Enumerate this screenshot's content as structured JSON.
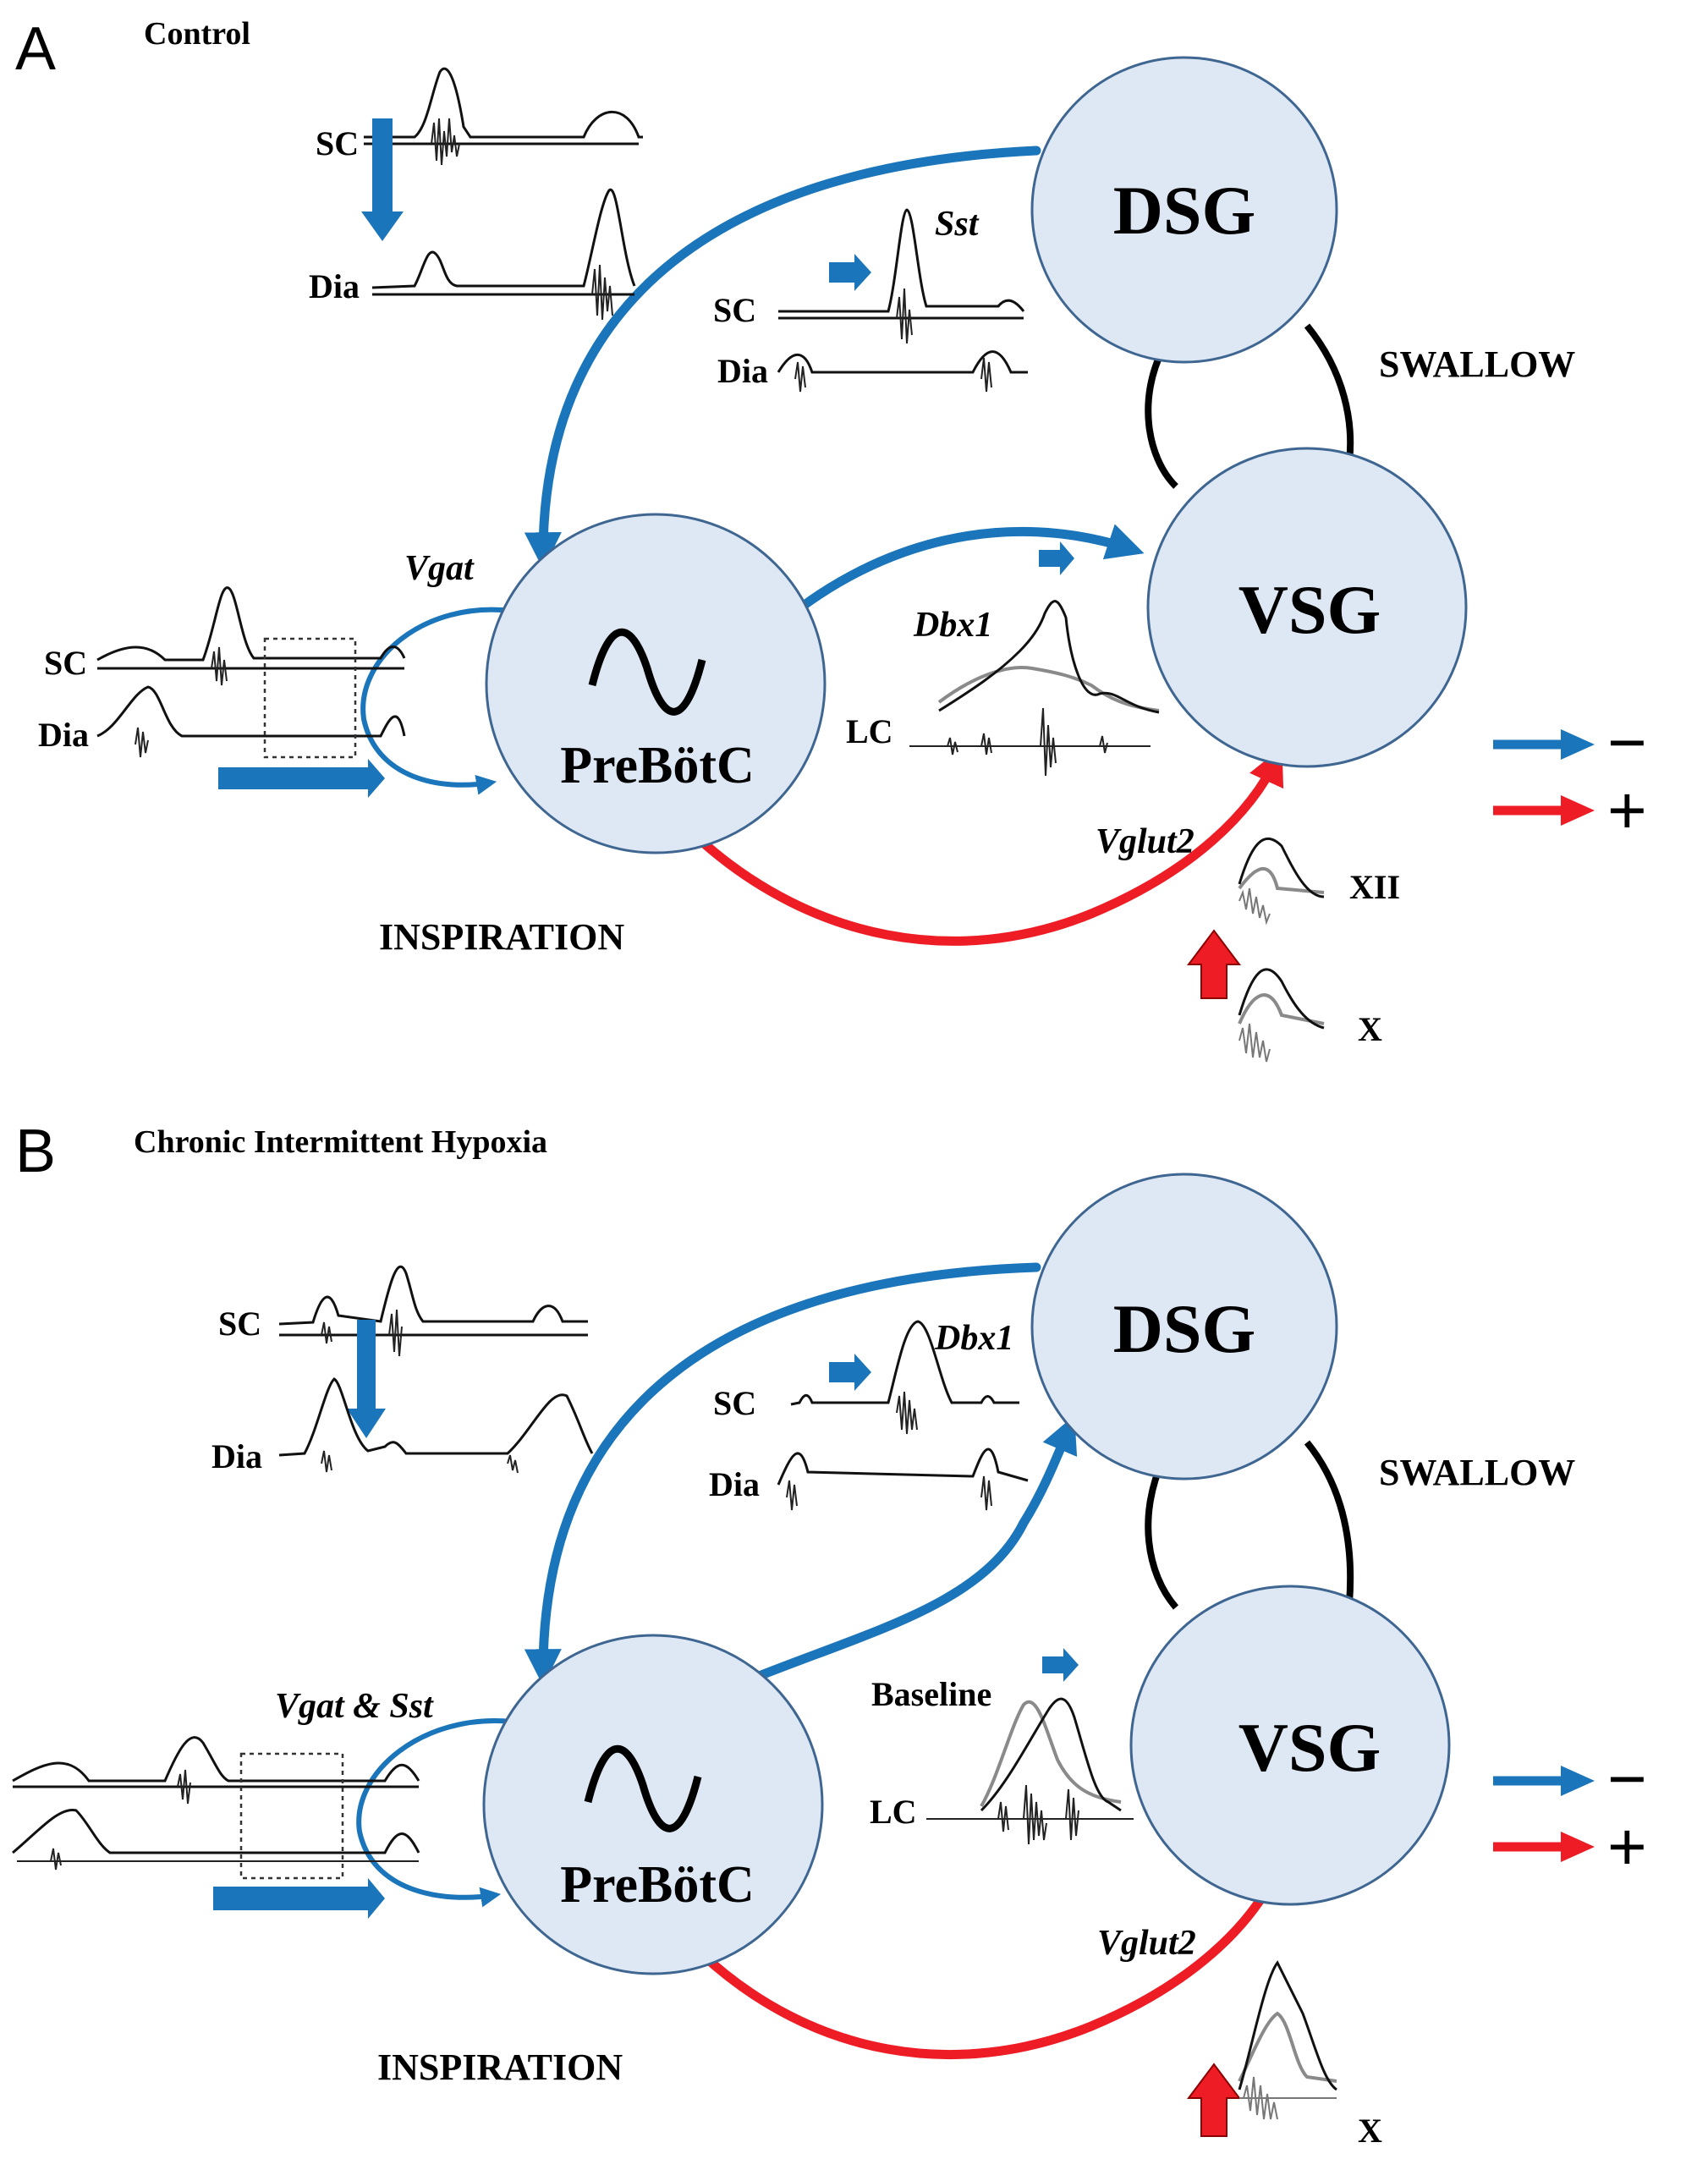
{
  "panels": [
    {
      "letter": "A",
      "condition": "Control",
      "nodes": {
        "dsg": "DSG",
        "vsg": "VSG",
        "prebotc": "PreBötC"
      },
      "regions": {
        "swallow": "SWALLOW",
        "inspiration": "INSPIRATION"
      },
      "genes": {
        "dsg_to_prebotc": "Sst",
        "self_loop": "Vgat",
        "prebotc_to_vsg": "Dbx1",
        "excitatory": "Vglut2"
      },
      "trace_labels": {
        "sc": "SC",
        "dia": "Dia",
        "lc": "LC",
        "xii": "XII",
        "x": "X"
      }
    },
    {
      "letter": "B",
      "condition": "Chronic Intermittent Hypoxia",
      "nodes": {
        "dsg": "DSG",
        "vsg": "VSG",
        "prebotc": "PreBötC"
      },
      "regions": {
        "swallow": "SWALLOW",
        "inspiration": "INSPIRATION"
      },
      "genes": {
        "prebotc_to_dsg": "Dbx1",
        "self_loop": "Vgat & Sst",
        "excitatory": "Vglut2"
      },
      "trace_labels": {
        "sc": "SC",
        "dia": "Dia",
        "lc": "LC",
        "baseline": "Baseline",
        "x": "X"
      }
    }
  ],
  "legend": [
    {
      "color": "#1b75bb",
      "sign": "−"
    },
    {
      "color": "#ee1c24",
      "sign": "+"
    }
  ],
  "colors": {
    "inhibitory": "#1b75bb",
    "excitatory": "#ee1c24",
    "node_fill": "#dde8f4",
    "node_stroke": "#3f6691"
  },
  "icons": {
    "prebotc_symbol": "sine-wave-icon"
  }
}
